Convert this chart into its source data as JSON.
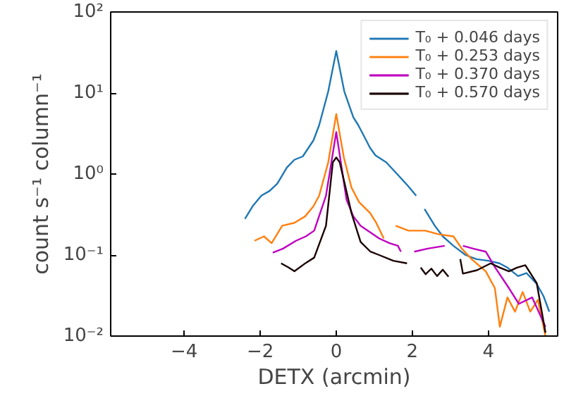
{
  "chart_data": {
    "type": "line",
    "xlabel": "DETX (arcmin)",
    "ylabel": "count s⁻¹ column⁻¹",
    "log": "y",
    "grid": false,
    "legend": "top right",
    "marker": "none",
    "line_style": "solid",
    "xlim": [
      -5.93,
      5.82
    ],
    "xticks": [
      {
        "value": -4,
        "label": "−4"
      },
      {
        "value": -2,
        "label": "−2"
      },
      0,
      2,
      4
    ],
    "ylim": [
      0.01,
      100
    ],
    "yticks": [
      {
        "value": 0.01,
        "label": "10⁻²"
      },
      {
        "value": 0.1,
        "label": "10⁻¹"
      },
      {
        "value": 1,
        "label": "10⁰"
      },
      {
        "value": 10,
        "label": "10¹"
      },
      {
        "value": 100,
        "label": "10²"
      }
    ],
    "series": [
      {
        "name": "T₀ + 0.046 days",
        "color": "#1f77b4",
        "x": [
          -2.4,
          -2.2,
          -1.97,
          -1.75,
          -1.55,
          -1.3,
          -1.1,
          -0.88,
          -0.6,
          -0.45,
          -0.21,
          0,
          0.21,
          0.45,
          0.58,
          0.89,
          1.03,
          1.31,
          1.6,
          1.9,
          2.1,
          2.2,
          2.32,
          2.59,
          2.8,
          3.08,
          3.4,
          3.69,
          4.0,
          4.29,
          4.5,
          4.78,
          5.0,
          5.27,
          5.45,
          5.6
        ],
        "values": [
          0.28,
          0.4,
          0.54,
          0.62,
          0.76,
          1.2,
          1.5,
          1.65,
          2.6,
          4.0,
          10.5,
          33,
          10.5,
          5,
          4.0,
          2.1,
          1.7,
          1.4,
          1.0,
          0.7,
          0.54,
          null,
          0.37,
          0.23,
          0.17,
          0.13,
          0.1,
          0.089,
          0.085,
          0.079,
          0.07,
          0.055,
          0.06,
          0.044,
          0.031,
          0.02
        ]
      },
      {
        "name": "T₀ + 0.253 days",
        "color": "#ff7f0e",
        "x": [
          -2.15,
          -1.9,
          -1.7,
          -1.42,
          -1.1,
          -0.82,
          -0.6,
          -0.45,
          -0.21,
          0,
          0.2,
          0.4,
          0.6,
          0.89,
          1.05,
          1.25,
          1.4,
          1.56,
          1.9,
          2.34,
          2.7,
          3.08,
          3.3,
          3.56,
          3.93,
          4.17,
          4.3,
          4.5,
          4.7,
          4.9,
          5.1,
          5.3,
          5.5
        ],
        "values": [
          0.15,
          0.17,
          0.14,
          0.23,
          0.25,
          0.3,
          0.4,
          0.54,
          1.4,
          5.5,
          1.6,
          0.68,
          0.45,
          0.33,
          0.25,
          0.16,
          null,
          0.23,
          0.2,
          0.2,
          0.18,
          0.17,
          0.12,
          0.089,
          0.063,
          0.039,
          0.013,
          0.03,
          0.02,
          0.035,
          0.02,
          0.028,
          0.01
        ]
      },
      {
        "name": "T₀ + 0.370 days",
        "color": "#bf00bf",
        "x": [
          -1.67,
          -1.4,
          -1.06,
          -0.8,
          -0.58,
          -0.27,
          0,
          0.27,
          0.45,
          0.64,
          0.9,
          1.13,
          1.4,
          1.62,
          1.7,
          1.85,
          2.05,
          2.4,
          2.85,
          3.0,
          3.33,
          3.6,
          3.93,
          4.18,
          4.54,
          4.8,
          5.15,
          5.5
        ],
        "values": [
          0.107,
          0.12,
          0.15,
          0.17,
          0.2,
          0.54,
          3.3,
          0.48,
          0.3,
          0.23,
          0.19,
          0.16,
          0.14,
          0.13,
          0.11,
          null,
          0.11,
          0.12,
          0.13,
          null,
          0.13,
          0.12,
          0.11,
          0.07,
          0.039,
          0.025,
          0.03,
          0.013
        ]
      },
      {
        "name": "T₀ + 0.570 days",
        "color": "#1a0000",
        "x": [
          -1.45,
          -1.25,
          -1.1,
          -0.8,
          -0.58,
          -0.27,
          -0.09,
          0,
          0.09,
          0.4,
          0.64,
          0.9,
          1.13,
          1.5,
          1.86,
          2.0,
          2.22,
          2.35,
          2.5,
          2.65,
          2.8,
          2.95,
          3.1,
          3.26,
          3.33,
          3.7,
          4.06,
          4.3,
          4.54,
          4.75,
          4.97,
          5.27,
          5.5
        ],
        "values": [
          0.079,
          0.07,
          0.063,
          0.08,
          0.093,
          0.23,
          1.4,
          1.6,
          1.4,
          0.33,
          0.145,
          0.11,
          0.1,
          0.085,
          0.079,
          null,
          0.07,
          0.058,
          0.068,
          0.055,
          0.066,
          0.054,
          null,
          0.089,
          0.059,
          0.065,
          0.079,
          0.07,
          0.063,
          0.07,
          0.075,
          0.045,
          0.011
        ]
      }
    ]
  }
}
